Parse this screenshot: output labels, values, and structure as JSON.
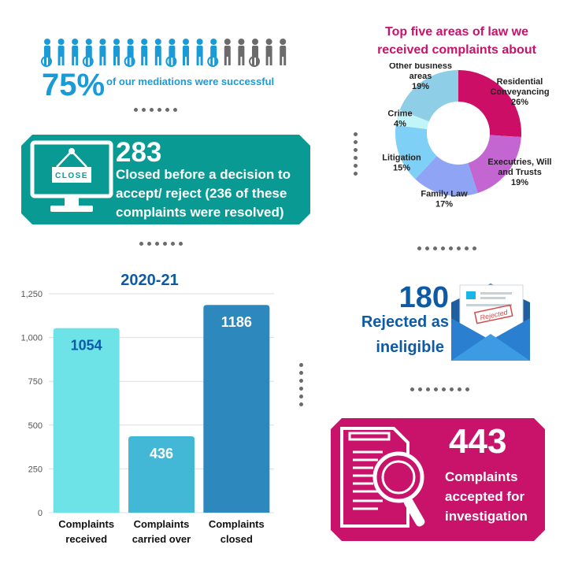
{
  "mediation": {
    "percent": "75%",
    "caption": "of our mediations were successful",
    "people_total": 18,
    "people_highlighted": 13,
    "highlight_color": "#1a9bd7",
    "other_color": "#6b6b6b"
  },
  "closed_panel": {
    "number": "283",
    "line1": "Closed before a decision to",
    "line2": "accept/ reject (236 of these",
    "line3": "complaints were resolved)",
    "sign_text": "CLOSE",
    "color": "#0a9a94"
  },
  "donut": {
    "title_line1": "Top five areas of law we",
    "title_line2": "received complaints about",
    "title_color": "#c9126a"
  },
  "rejected": {
    "number": "180",
    "line1": "Rejected as",
    "line2": "ineligible",
    "stamp": "Rejected",
    "color": "#0d5aa7"
  },
  "accepted_panel": {
    "number": "443",
    "line1": "Complaints",
    "line2": "accepted for",
    "line3": "investigation",
    "color": "#c9126a"
  },
  "chart_data": [
    {
      "type": "bar",
      "title": "2020-21",
      "categories": [
        [
          "Complaints",
          "received"
        ],
        [
          "Complaints",
          "carried over"
        ],
        [
          "Complaints",
          "closed"
        ]
      ],
      "values": [
        1054,
        436,
        1186
      ],
      "value_labels": [
        "1054",
        "436",
        "1186"
      ],
      "colors": [
        "#6de3e8",
        "#42b8d6",
        "#2d89bd"
      ],
      "label_colors": [
        "#0d5aa7",
        "#ffffff",
        "#ffffff"
      ],
      "ylim": [
        0,
        1250
      ],
      "yticks": [
        0,
        250,
        500,
        750,
        1000,
        1250
      ],
      "ytick_labels": [
        "0",
        "250",
        "500",
        "750",
        "1,000",
        "1,250"
      ],
      "grid": true
    },
    {
      "type": "pie",
      "donut": true,
      "slices": [
        {
          "label": [
            "Residential",
            "Conveyancing",
            "26%"
          ],
          "value": 26,
          "color": "#cc0e66"
        },
        {
          "label": [
            "Executries, Will",
            "and Trusts",
            "19%"
          ],
          "value": 19,
          "color": "#c466d2"
        },
        {
          "label": [
            "Family Law",
            "17%"
          ],
          "value": 17,
          "color": "#8fa4f5"
        },
        {
          "label": [
            "Litigation",
            "15%"
          ],
          "value": 15,
          "color": "#7fd0f7"
        },
        {
          "label": [
            "Crime",
            "4%"
          ],
          "value": 4,
          "color": "#c2f5f8"
        },
        {
          "label": [
            "Other business",
            "areas",
            "19%"
          ],
          "value": 19,
          "color": "#8ecfe7"
        }
      ]
    }
  ]
}
